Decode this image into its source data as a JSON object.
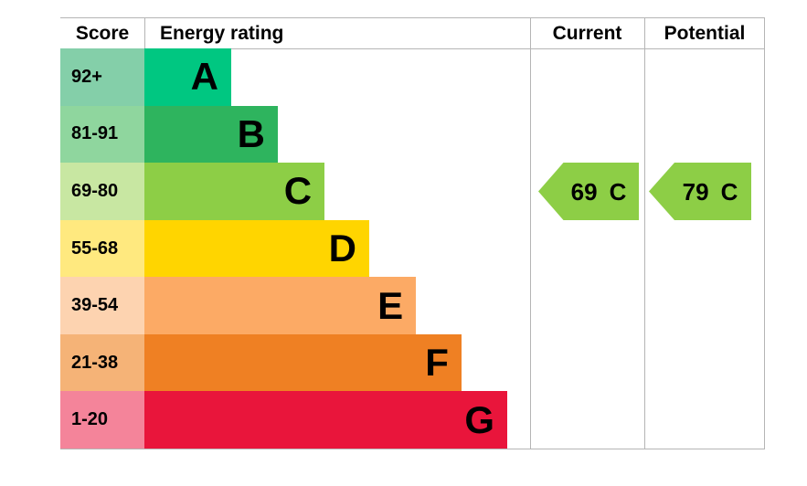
{
  "header": {
    "score": "Score",
    "energy_rating": "Energy rating",
    "current": "Current",
    "potential": "Potential"
  },
  "chart_data": {
    "type": "bar",
    "description": "EPC energy efficiency rating bands with current and potential ratings",
    "bands": [
      {
        "letter": "A",
        "score": "92+",
        "bar_color": "#00c781",
        "score_tint": "#84cfa9",
        "width_pct": 22.5
      },
      {
        "letter": "B",
        "score": "81-91",
        "bar_color": "#2eb45e",
        "score_tint": "#8fd69e",
        "width_pct": 34.6
      },
      {
        "letter": "C",
        "score": "69-80",
        "bar_color": "#8dce46",
        "score_tint": "#c8e7a2",
        "width_pct": 46.7
      },
      {
        "letter": "D",
        "score": "55-68",
        "bar_color": "#ffd500",
        "score_tint": "#ffe97f",
        "width_pct": 58.3
      },
      {
        "letter": "E",
        "score": "39-54",
        "bar_color": "#fcaa65",
        "score_tint": "#fdd3b0",
        "width_pct": 70.4
      },
      {
        "letter": "F",
        "score": "21-38",
        "bar_color": "#ef8023",
        "score_tint": "#f5b377",
        "width_pct": 82.2
      },
      {
        "letter": "G",
        "score": "1-20",
        "bar_color": "#e9153b",
        "score_tint": "#f4849a",
        "width_pct": 94.1
      }
    ],
    "current": {
      "score": "69",
      "band": "C"
    },
    "potential": {
      "score": "79",
      "band": "C"
    },
    "arrow_color": "#8dce46",
    "border_color": "#b5b5b5"
  }
}
